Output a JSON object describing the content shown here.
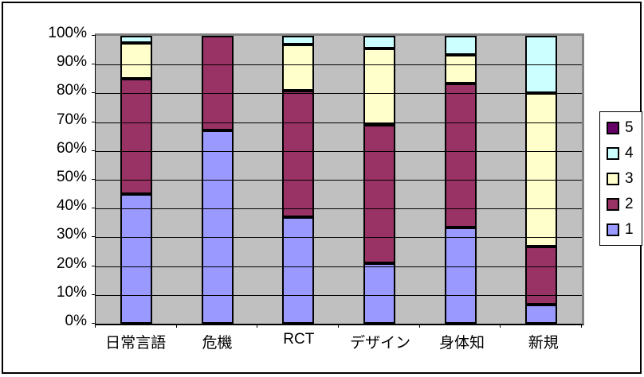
{
  "chart_data": {
    "type": "bar",
    "variant": "stacked-percent-column",
    "title": "",
    "xlabel": "",
    "ylabel": "",
    "ylim": [
      0,
      100
    ],
    "grid": true,
    "plot_bg": "#C0C0C0",
    "gridline_color": "#000000",
    "categories": [
      "日常言語",
      "危機",
      "RCT",
      "デザイン",
      "身体知",
      "新規"
    ],
    "y_ticks": [
      "0%",
      "10%",
      "20%",
      "30%",
      "40%",
      "50%",
      "60%",
      "70%",
      "80%",
      "90%",
      "100%"
    ],
    "series": [
      {
        "name": "1",
        "color": "#9999FF",
        "values": [
          45.0,
          67.0,
          37.0,
          21.0,
          33.3,
          6.7
        ]
      },
      {
        "name": "2",
        "color": "#993366",
        "values": [
          40.0,
          33.0,
          44.0,
          48.0,
          50.0,
          20.0
        ]
      },
      {
        "name": "3",
        "color": "#FFFFCC",
        "values": [
          12.5,
          0,
          16.0,
          26.5,
          10.0,
          53.3
        ]
      },
      {
        "name": "4",
        "color": "#CCFFFF",
        "values": [
          2.5,
          0,
          3.0,
          4.5,
          6.7,
          20.0
        ]
      },
      {
        "name": "5",
        "color": "#660066",
        "values": [
          0,
          0,
          0,
          0,
          0,
          0
        ]
      }
    ],
    "legend_position": "right",
    "legend_order": [
      "5",
      "4",
      "3",
      "2",
      "1"
    ]
  }
}
